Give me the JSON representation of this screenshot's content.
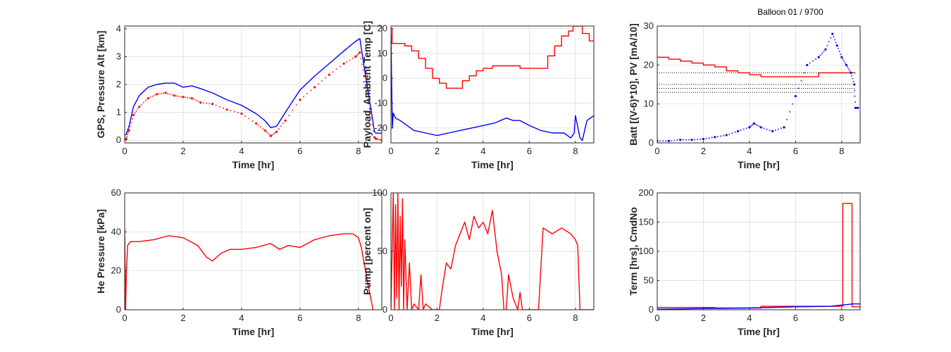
{
  "figure": {
    "annotation": "Balloon 01 / 9700"
  },
  "chart_data": [
    {
      "id": "gps_alt",
      "type": "line",
      "xlabel": "Time [hr]",
      "ylabel": "GPS, Pressure Alt [km]",
      "xlim": [
        0,
        8.8
      ],
      "ylim": [
        -0.1,
        4.1
      ],
      "xticks": [
        0,
        2,
        4,
        6,
        8
      ],
      "yticks": [
        0,
        1,
        2,
        3,
        4
      ],
      "grid": true,
      "series": [
        {
          "color": "#0000ff",
          "style": "line",
          "x": [
            0,
            0.05,
            0.15,
            0.3,
            0.5,
            0.8,
            1.1,
            1.4,
            1.7,
            2.0,
            2.3,
            2.6,
            3.0,
            3.5,
            4.0,
            4.5,
            4.8,
            5.0,
            5.2,
            5.5,
            6.0,
            6.5,
            7.0,
            7.5,
            7.9,
            8.05,
            8.2,
            8.4,
            8.55,
            8.6,
            8.8
          ],
          "y": [
            0.2,
            0.2,
            0.5,
            1.2,
            1.6,
            1.9,
            2.0,
            2.05,
            2.05,
            1.9,
            1.95,
            1.85,
            1.7,
            1.45,
            1.25,
            0.95,
            0.7,
            0.45,
            0.5,
            1.0,
            1.8,
            2.3,
            2.75,
            3.2,
            3.55,
            3.65,
            2.6,
            1.3,
            0.3,
            0.25,
            0.25
          ]
        },
        {
          "color": "#ff0000",
          "style": "dots",
          "x": [
            0,
            0.05,
            0.15,
            0.3,
            0.5,
            0.8,
            1.1,
            1.4,
            1.7,
            2.0,
            2.3,
            2.6,
            3.0,
            3.5,
            4.0,
            4.5,
            4.8,
            5.0,
            5.2,
            5.5,
            6.0,
            6.5,
            7.0,
            7.5,
            7.9,
            8.05,
            8.2,
            8.4,
            8.55,
            8.6,
            8.8
          ],
          "y": [
            0.05,
            0.05,
            0.35,
            0.9,
            1.2,
            1.5,
            1.65,
            1.7,
            1.6,
            1.55,
            1.5,
            1.35,
            1.3,
            1.1,
            0.95,
            0.6,
            0.35,
            0.15,
            0.3,
            0.7,
            1.45,
            1.9,
            2.35,
            2.75,
            3.0,
            3.15,
            2.3,
            1.0,
            0.1,
            0.05,
            0.0
          ]
        }
      ]
    },
    {
      "id": "temps",
      "type": "line",
      "xlabel": "Time [hr]",
      "ylabel": "Payload, Ambient Temp [C]",
      "xlim": [
        0,
        8.8
      ],
      "ylim": [
        -26,
        21
      ],
      "xticks": [
        0,
        2,
        4,
        6,
        8
      ],
      "yticks": [
        -20,
        -10,
        0,
        10,
        20
      ],
      "grid": true,
      "series": [
        {
          "color": "#ff0000",
          "style": "step",
          "x": [
            0,
            0.05,
            0.2,
            0.6,
            0.9,
            1.2,
            1.5,
            1.8,
            2.1,
            2.4,
            2.8,
            3.1,
            3.4,
            3.7,
            4.0,
            4.4,
            4.8,
            5.2,
            5.6,
            6.0,
            6.5,
            6.8,
            7.1,
            7.4,
            7.7,
            7.9,
            8.1,
            8.3,
            8.6,
            8.8
          ],
          "y": [
            20,
            14,
            14,
            13,
            11,
            8,
            4,
            0,
            -2,
            -4,
            -4,
            -1,
            1,
            3,
            4,
            5,
            5,
            5,
            4,
            4,
            4,
            9,
            13,
            17,
            19,
            21,
            21,
            18,
            15,
            15
          ]
        },
        {
          "color": "#0000ff",
          "style": "line",
          "x": [
            0,
            0.03,
            0.06,
            0.1,
            0.2,
            0.4,
            0.7,
            1.0,
            1.5,
            2.0,
            2.5,
            3.0,
            3.5,
            4.0,
            4.5,
            5.0,
            5.3,
            5.6,
            6.0,
            6.5,
            7.0,
            7.5,
            7.8,
            7.95,
            8.0,
            8.2,
            8.3,
            8.5,
            8.8
          ],
          "y": [
            18,
            -2,
            -20,
            -14,
            -16,
            -17,
            -19,
            -21,
            -22,
            -23,
            -22,
            -21,
            -20,
            -19,
            -18,
            -16,
            -17,
            -17,
            -19,
            -21,
            -22,
            -22,
            -24,
            -22,
            -15,
            -24,
            -25,
            -17,
            -15
          ]
        }
      ]
    },
    {
      "id": "batt_pv",
      "type": "line",
      "xlabel": "Time [hr]",
      "ylabel": "Batt [(V-6)*10], PV [mA/10]",
      "xlim": [
        0,
        8.8
      ],
      "ylim": [
        0,
        30
      ],
      "xticks": [
        0,
        2,
        4,
        6,
        8
      ],
      "yticks": [
        0,
        10,
        20,
        30
      ],
      "grid": true,
      "ref_lines": [
        18,
        15,
        14,
        13
      ],
      "series": [
        {
          "color": "#ff0000",
          "style": "step",
          "x": [
            0,
            0.5,
            1.0,
            1.5,
            2.0,
            2.5,
            3.0,
            3.5,
            4.0,
            4.5,
            5.0,
            6.0,
            7.0,
            8.0,
            8.6
          ],
          "y": [
            22,
            21.5,
            21,
            20.5,
            20,
            19.5,
            18.5,
            18,
            17.5,
            17,
            17,
            17,
            18,
            18,
            18
          ]
        },
        {
          "color": "#0000ff",
          "style": "dots",
          "x": [
            0,
            0.5,
            1.0,
            1.5,
            2.0,
            2.5,
            3.0,
            3.5,
            4.0,
            4.2,
            4.5,
            5.0,
            5.5,
            6.0,
            6.5,
            7.0,
            7.3,
            7.6,
            7.8,
            8.0,
            8.2,
            8.4,
            8.55,
            8.6,
            8.7
          ],
          "y": [
            0.5,
            0.5,
            0.8,
            0.8,
            1,
            1.5,
            2,
            3,
            4,
            5,
            4,
            3,
            4,
            12,
            20,
            22,
            24,
            28,
            25,
            22,
            20,
            18,
            15,
            9,
            9
          ]
        }
      ]
    },
    {
      "id": "he_pressure",
      "type": "line",
      "xlabel": "Time [hr]",
      "ylabel": "He Pressure [kPa]",
      "xlim": [
        0,
        8.8
      ],
      "ylim": [
        0,
        60
      ],
      "xticks": [
        0,
        2,
        4,
        6,
        8
      ],
      "yticks": [
        0,
        20,
        40,
        60
      ],
      "grid": true,
      "series": [
        {
          "color": "#ff0000",
          "style": "line",
          "x": [
            0,
            0.03,
            0.06,
            0.1,
            0.2,
            0.5,
            1.0,
            1.5,
            2.0,
            2.5,
            2.8,
            3.0,
            3.3,
            3.6,
            4.0,
            4.5,
            5.0,
            5.3,
            5.6,
            6.0,
            6.5,
            7.0,
            7.5,
            7.8,
            8.0,
            8.1,
            8.3,
            8.5
          ],
          "y": [
            42,
            0,
            20,
            33,
            35,
            35,
            36,
            38,
            37,
            33,
            27,
            25,
            29,
            31,
            31,
            32,
            34,
            31,
            33,
            32,
            36,
            38,
            39,
            39,
            37,
            32,
            15,
            0
          ]
        }
      ]
    },
    {
      "id": "pump",
      "type": "line",
      "xlabel": "Time [hr]",
      "ylabel": "Pump [percent on]",
      "xlim": [
        0,
        8.8
      ],
      "ylim": [
        0,
        100
      ],
      "xticks": [
        0,
        2,
        4,
        6,
        8
      ],
      "yticks": [
        0,
        50,
        100
      ],
      "grid": true,
      "series": [
        {
          "color": "#ff0000",
          "style": "line",
          "x": [
            0,
            0.1,
            0.15,
            0.2,
            0.25,
            0.3,
            0.35,
            0.4,
            0.45,
            0.5,
            0.55,
            0.6,
            0.7,
            0.8,
            0.9,
            1.0,
            1.2,
            1.3,
            1.4,
            1.5,
            1.8,
            2.0,
            2.1,
            2.2,
            2.4,
            2.6,
            2.8,
            3.0,
            3.2,
            3.4,
            3.6,
            3.8,
            4.0,
            4.2,
            4.4,
            4.6,
            4.8,
            4.9,
            5.0,
            5.1,
            5.3,
            5.5,
            5.6,
            5.7,
            6.0,
            6.2,
            6.4,
            6.6,
            7.0,
            7.4,
            7.8,
            8.0,
            8.1,
            8.2,
            8.8
          ],
          "y": [
            0,
            100,
            0,
            90,
            10,
            100,
            0,
            80,
            20,
            95,
            0,
            60,
            0,
            40,
            0,
            5,
            0,
            30,
            0,
            5,
            0,
            0,
            0,
            15,
            40,
            35,
            55,
            65,
            75,
            60,
            80,
            70,
            75,
            65,
            85,
            50,
            30,
            0,
            0,
            30,
            10,
            0,
            15,
            0,
            0,
            0,
            0,
            70,
            65,
            70,
            65,
            60,
            55,
            0,
            0
          ]
        }
      ]
    },
    {
      "id": "term",
      "type": "line",
      "xlabel": "Time [hr]",
      "ylabel": "Term [hrs], CmdNo",
      "xlim": [
        0,
        8.8
      ],
      "ylim": [
        0,
        200
      ],
      "xticks": [
        0,
        2,
        4,
        6,
        8
      ],
      "yticks": [
        0,
        50,
        100,
        150,
        200
      ],
      "grid": true,
      "series": [
        {
          "color": "#ff0000",
          "style": "step",
          "x": [
            0,
            1.0,
            2.5,
            4.5,
            7.5,
            8.05,
            8.25,
            8.45,
            8.8
          ],
          "y": [
            4,
            4,
            3,
            6,
            6,
            182,
            182,
            5,
            5
          ]
        },
        {
          "color": "#0000ff",
          "style": "line",
          "x": [
            0,
            2.0,
            4.0,
            6.0,
            7.5,
            8.0,
            8.5,
            8.8
          ],
          "y": [
            1,
            2,
            3,
            5,
            6,
            8,
            10,
            10
          ]
        }
      ]
    }
  ]
}
